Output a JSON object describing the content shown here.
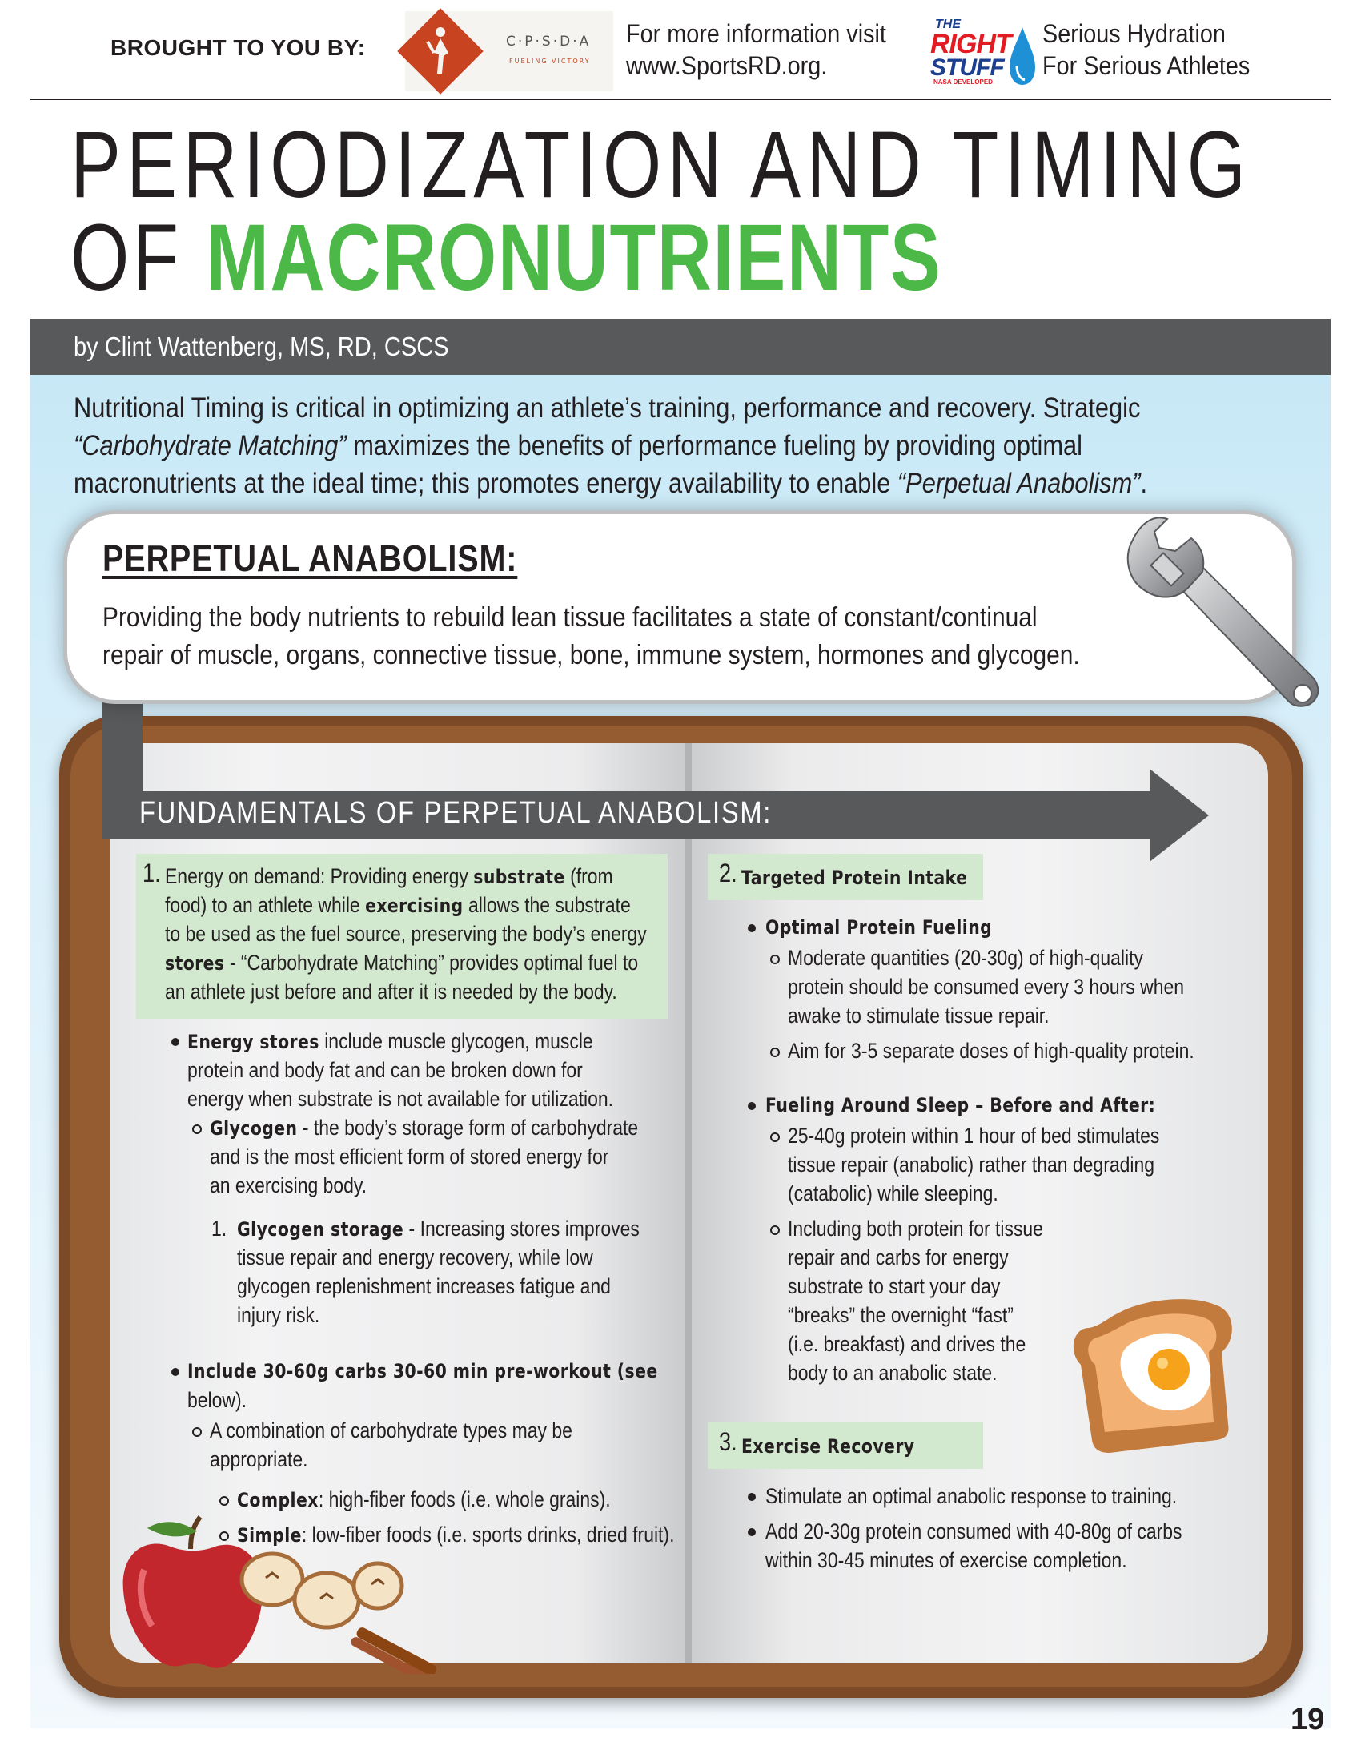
{
  "header": {
    "brought_label": "BROUGHT TO YOU BY:",
    "sponsor1_logo_text": "C·P·S·D·A",
    "sponsor1_logo_tagline": "FUELING VICTORY",
    "more_info_line1": "For more information visit",
    "more_info_line2": "www.SportsRD.org.",
    "sponsor2_logo_line1": "THE",
    "sponsor2_logo_line2": "RIGHT",
    "sponsor2_logo_line3": "STUFF",
    "sponsor2_logo_line4": "NASA DEVELOPED",
    "tagline_line1": "Serious Hydration",
    "tagline_line2": "For Serious Athletes"
  },
  "title": {
    "line1": "PERIODIZATION AND TIMING",
    "line2_prefix": "OF ",
    "line2_highlight": "MACRONUTRIENTS"
  },
  "byline": "by Clint Wattenberg, MS, RD, CSCS",
  "intro": {
    "l1": "Nutritional Timing is critical in optimizing an athlete’s training, performance and recovery. Strategic",
    "l2_italic": "“Carbohydrate Matching”",
    "l2_rest": " maximizes the benefits of performance fueling by providing optimal",
    "l3_start": "macronutrients at the ideal time; this promotes energy availability to enable ",
    "l3_italic": "“Perpetual Anabolism”",
    "l3_end": "."
  },
  "callout": {
    "title": "PERPETUAL ANABOLISM:",
    "line1": "Providing the body nutrients to rebuild lean tissue facilitates a state of constant/continual",
    "line2": "repair of muscle, organs, connective tissue, bone, immune system, hormones and glycogen."
  },
  "fundamentals_title": "FUNDAMENTALS OF PERPETUAL ANABOLISM:",
  "left": {
    "s1_num": "1.",
    "s1_l1a": "Energy on demand: Providing energy ",
    "s1_l1b": "substrate",
    "s1_l1c": " (from",
    "s1_l2a": "food) to an athlete while ",
    "s1_l2b": "exercising",
    "s1_l2c": " allows the substrate",
    "s1_l3": "to be used as the fuel source, preserving the body’s energy",
    "s1_l4a": "stores",
    "s1_l4b": " - “Carbohydrate Matching” provides optimal fuel to",
    "s1_l5": "an athlete just before and after it is needed by the body.",
    "b1_l1a": "Energy stores",
    "b1_l1b": " include muscle glycogen, muscle",
    "b1_l2": "protein and body fat and can be broken down for",
    "b1_l3": "energy when substrate is not available for utilization.",
    "g_l1a": "Glycogen",
    "g_l1b": " - the body’s storage form of carbohydrate",
    "g_l2": "and is the most efficient form of stored energy for",
    "g_l3": "an exercising body.",
    "gs_num": "1.",
    "gs_l1a": "Glycogen storage",
    "gs_l1b": " - Increasing stores improves",
    "gs_l2": "tissue repair and energy recovery, while low",
    "gs_l3": "glycogen replenishment increases fatigue and",
    "gs_l4": "injury risk.",
    "b2_l1": "Include 30-60g carbs 30-60 min pre-workout (see",
    "b2_l2": "below).",
    "c_l1": "A combination of carbohydrate types may be",
    "c_l2": "appropriate.",
    "cx_a": "Complex",
    "cx_b": ": high-fiber foods (i.e. whole grains).",
    "sp_a": "Simple",
    "sp_b": ": low-fiber foods (i.e. sports drinks, dried fruit)."
  },
  "right": {
    "s2_num": "2.",
    "s2_title": "Targeted Protein Intake",
    "opf": "Optimal Protein Fueling",
    "mq_l1": "Moderate quantities (20-30g) of high-quality",
    "mq_l2": "protein should be consumed every 3 hours when",
    "mq_l3": "awake to stimulate tissue repair.",
    "aim": "Aim for 3-5 separate doses of high-quality protein.",
    "fas": "Fueling Around Sleep – Before and After:",
    "p25_l1": "25-40g protein within 1 hour of bed stimulates",
    "p25_l2": "tissue repair (anabolic) rather than degrading",
    "p25_l3": "(catabolic) while sleeping.",
    "inc_l1": "Including both protein for tissue",
    "inc_l2": "repair and carbs for energy",
    "inc_l3": "substrate to start your day",
    "inc_l4": "“breaks” the overnight “fast”",
    "inc_l5": "(i.e. breakfast) and drives the",
    "inc_l6": "body to an anabolic state.",
    "s3_num": "3.",
    "s3_title": "Exercise Recovery",
    "er1": "Stimulate an optimal anabolic response to training.",
    "er2_l1": "Add 20-30g protein consumed with 40-80g of carbs",
    "er2_l2": "within 30-45 minutes of exercise completion."
  },
  "page_number": "19",
  "colors": {
    "green_title": "#4cb848",
    "dark_gray_bar": "#58595b",
    "light_blue": "#d6eef9",
    "light_green_box": "#d3e9cf",
    "book_brown": "#7c4a26"
  }
}
